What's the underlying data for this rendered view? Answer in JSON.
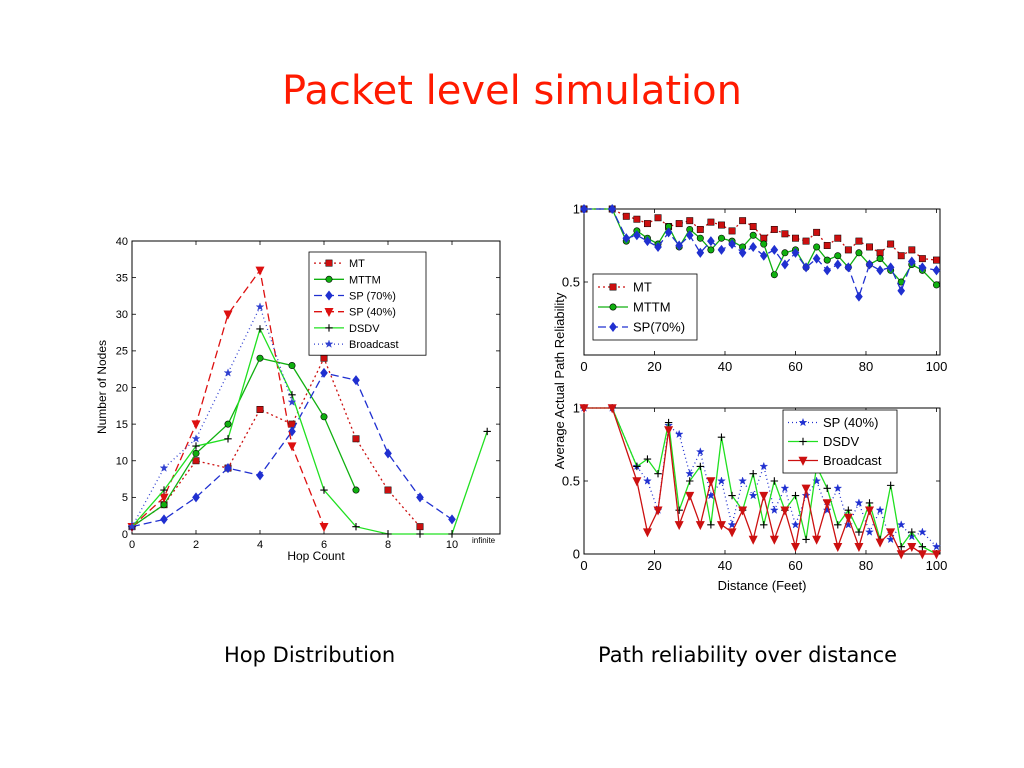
{
  "slide": {
    "title": "Packet level simulation",
    "caption_left": "Hop Distribution",
    "caption_right": "Path reliability over distance"
  },
  "chart_data": [
    {
      "type": "line",
      "xlabel": "Hop Count",
      "ylabel": "Number of Nodes",
      "xlim": [
        0,
        11.5
      ],
      "ylim": [
        0,
        40
      ],
      "xticks": [
        0,
        2,
        4,
        6,
        8,
        10
      ],
      "yticks": [
        0,
        5,
        10,
        15,
        20,
        25,
        30,
        35,
        40
      ],
      "extra_xtick_label": "infinite",
      "legend": "top-right",
      "series": [
        {
          "name": "MT",
          "color": "#cc1010",
          "dash": "2,3",
          "marker": "square",
          "x": [
            0,
            1,
            2,
            3,
            4,
            5,
            6,
            7,
            8,
            9
          ],
          "y": [
            1,
            4,
            10,
            9,
            17,
            15,
            24,
            13,
            6,
            1
          ]
        },
        {
          "name": "MTTM",
          "color": "#10b010",
          "dash": "",
          "marker": "circle",
          "x": [
            0,
            1,
            2,
            3,
            4,
            5,
            6,
            7
          ],
          "y": [
            1,
            4,
            11,
            15,
            24,
            23,
            16,
            6
          ]
        },
        {
          "name": "SP (70%)",
          "color": "#2030d0",
          "dash": "8,4",
          "marker": "diamond",
          "x": [
            0,
            1,
            2,
            3,
            4,
            5,
            6,
            7,
            8,
            9,
            10
          ],
          "y": [
            1,
            2,
            5,
            9,
            8,
            14,
            22,
            21,
            11,
            5,
            2
          ]
        },
        {
          "name": "SP (40%)",
          "color": "#dd1010",
          "dash": "8,4",
          "marker": "tridown",
          "x": [
            0,
            1,
            2,
            3,
            4,
            5,
            6
          ],
          "y": [
            1,
            5,
            15,
            30,
            36,
            12,
            1
          ]
        },
        {
          "name": "DSDV",
          "color": "#20e020",
          "dash": "",
          "marker": "plus",
          "x": [
            0,
            1,
            2,
            3,
            4,
            5,
            6,
            7,
            8,
            9,
            10,
            11.1
          ],
          "y": [
            1,
            6,
            12,
            13,
            28,
            19,
            6,
            1,
            0,
            0,
            0,
            14
          ]
        },
        {
          "name": "Broadcast",
          "color": "#3040d0",
          "dash": "1,3",
          "marker": "star",
          "x": [
            0,
            1,
            2,
            3,
            4,
            5
          ],
          "y": [
            1,
            9,
            13,
            22,
            31,
            18
          ]
        }
      ]
    },
    {
      "type": "line",
      "xlabel": "",
      "ylabel": "",
      "xlim": [
        0,
        101
      ],
      "ylim": [
        0,
        1
      ],
      "xticks": [
        0,
        20,
        40,
        60,
        80,
        100
      ],
      "yticks": [
        0.5,
        1
      ],
      "legend": "left-middle",
      "series": [
        {
          "name": "MT",
          "color": "#cc1010",
          "dash": "2,3",
          "marker": "square",
          "x": [
            0,
            8,
            12,
            15,
            18,
            21,
            24,
            27,
            30,
            33,
            36,
            39,
            42,
            45,
            48,
            51,
            54,
            57,
            60,
            63,
            66,
            69,
            72,
            75,
            78,
            81,
            84,
            87,
            90,
            93,
            96,
            100
          ],
          "y": [
            1,
            1,
            0.95,
            0.93,
            0.9,
            0.94,
            0.88,
            0.9,
            0.92,
            0.86,
            0.91,
            0.89,
            0.85,
            0.92,
            0.88,
            0.8,
            0.86,
            0.83,
            0.8,
            0.78,
            0.84,
            0.75,
            0.8,
            0.72,
            0.78,
            0.74,
            0.7,
            0.76,
            0.68,
            0.72,
            0.66,
            0.65
          ]
        },
        {
          "name": "MTTM",
          "color": "#10b010",
          "dash": "",
          "marker": "circle",
          "x": [
            0,
            8,
            12,
            15,
            18,
            21,
            24,
            27,
            30,
            33,
            36,
            39,
            42,
            45,
            48,
            51,
            54,
            57,
            60,
            63,
            66,
            69,
            72,
            75,
            78,
            81,
            84,
            87,
            90,
            93,
            96,
            100
          ],
          "y": [
            1,
            1,
            0.78,
            0.85,
            0.8,
            0.76,
            0.88,
            0.74,
            0.86,
            0.8,
            0.72,
            0.8,
            0.78,
            0.74,
            0.82,
            0.76,
            0.55,
            0.7,
            0.72,
            0.6,
            0.74,
            0.65,
            0.68,
            0.6,
            0.7,
            0.62,
            0.66,
            0.58,
            0.5,
            0.62,
            0.58,
            0.48
          ]
        },
        {
          "name": "SP(70%)",
          "color": "#2030d0",
          "dash": "8,4",
          "marker": "diamond",
          "x": [
            0,
            8,
            12,
            15,
            18,
            21,
            24,
            27,
            30,
            33,
            36,
            39,
            42,
            45,
            48,
            51,
            54,
            57,
            60,
            63,
            66,
            69,
            72,
            75,
            78,
            81,
            84,
            87,
            90,
            93,
            96,
            100
          ],
          "y": [
            1,
            1,
            0.8,
            0.82,
            0.78,
            0.74,
            0.84,
            0.75,
            0.82,
            0.7,
            0.78,
            0.72,
            0.76,
            0.7,
            0.74,
            0.68,
            0.72,
            0.62,
            0.7,
            0.6,
            0.66,
            0.58,
            0.62,
            0.6,
            0.4,
            0.62,
            0.58,
            0.6,
            0.44,
            0.64,
            0.6,
            0.58
          ]
        }
      ]
    },
    {
      "type": "line",
      "xlabel": "Distance (Feet)",
      "ylabel": "Average Actual Path Reliability",
      "xlim": [
        0,
        101
      ],
      "ylim": [
        0,
        1
      ],
      "xticks": [
        0,
        20,
        40,
        60,
        80,
        100
      ],
      "yticks": [
        0,
        0.5,
        1
      ],
      "legend": "top-right",
      "series": [
        {
          "name": "SP (40%)",
          "color": "#2030d0",
          "dash": "1,3",
          "marker": "star",
          "x": [
            0,
            8,
            15,
            18,
            21,
            24,
            27,
            30,
            33,
            36,
            39,
            42,
            45,
            48,
            51,
            54,
            57,
            60,
            63,
            66,
            69,
            72,
            75,
            78,
            81,
            84,
            87,
            90,
            93,
            96,
            100
          ],
          "y": [
            1,
            1,
            0.6,
            0.5,
            0.3,
            0.88,
            0.82,
            0.55,
            0.7,
            0.4,
            0.5,
            0.2,
            0.5,
            0.4,
            0.6,
            0.3,
            0.45,
            0.2,
            0.4,
            0.5,
            0.3,
            0.45,
            0.2,
            0.35,
            0.15,
            0.3,
            0.1,
            0.2,
            0.12,
            0.15,
            0.05
          ]
        },
        {
          "name": "DSDV",
          "color": "#20e020",
          "dash": "",
          "marker": "plus",
          "x": [
            0,
            8,
            15,
            18,
            21,
            24,
            27,
            30,
            33,
            36,
            39,
            42,
            45,
            48,
            51,
            54,
            57,
            60,
            63,
            66,
            69,
            72,
            75,
            78,
            81,
            84,
            87,
            90,
            93,
            96,
            100
          ],
          "y": [
            1,
            1,
            0.6,
            0.65,
            0.55,
            0.9,
            0.3,
            0.5,
            0.6,
            0.2,
            0.8,
            0.4,
            0.3,
            0.55,
            0.2,
            0.5,
            0.3,
            0.4,
            0.1,
            0.6,
            0.45,
            0.2,
            0.3,
            0.15,
            0.35,
            0.1,
            0.47,
            0.05,
            0.15,
            0.05,
            0.0
          ]
        },
        {
          "name": "Broadcast",
          "color": "#cc1010",
          "dash": "",
          "marker": "tridown",
          "x": [
            0,
            8,
            15,
            18,
            21,
            24,
            27,
            30,
            33,
            36,
            39,
            42,
            45,
            48,
            51,
            54,
            57,
            60,
            63,
            66,
            69,
            72,
            75,
            78,
            81,
            84,
            87,
            90,
            93,
            96,
            100
          ],
          "y": [
            1,
            1,
            0.5,
            0.15,
            0.3,
            0.85,
            0.2,
            0.4,
            0.2,
            0.5,
            0.2,
            0.15,
            0.3,
            0.1,
            0.4,
            0.1,
            0.3,
            0.05,
            0.45,
            0.1,
            0.35,
            0.05,
            0.25,
            0.05,
            0.3,
            0.08,
            0.15,
            0.0,
            0.05,
            0.0,
            0.0
          ]
        }
      ]
    }
  ]
}
